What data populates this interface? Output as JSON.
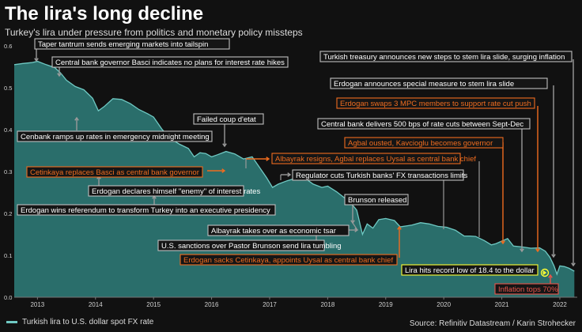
{
  "title": "The lira's long decline",
  "subtitle": "Turkey's lira under pressure from politics and monetary policy missteps",
  "legend_label": "Turkish lira to U.S. dollar spot FX rate",
  "source": "Source: Refinitiv Datastream / Karin Strohecker",
  "colors": {
    "background": "#111111",
    "series": "#6fc9c3",
    "area": "#2f7f7b",
    "gray_box": "#bfbfbf",
    "orange_box": "#ef6c1f",
    "yellow_box": "#ffff33",
    "red_box": "#e8544a"
  },
  "chart_data": {
    "type": "area",
    "ylim": [
      0,
      0.6
    ],
    "yticks": [
      0.0,
      0.1,
      0.2,
      0.3,
      0.4,
      0.5,
      0.6
    ],
    "xlim": [
      2012.6,
      2022.3
    ],
    "xticks": [
      2013,
      2014,
      2015,
      2016,
      2017,
      2018,
      2019,
      2020,
      2021,
      2022
    ],
    "grid": false,
    "series": [
      {
        "name": "Turkish lira to U.S. dollar spot FX rate",
        "points": [
          [
            2012.6,
            0.555
          ],
          [
            2012.75,
            0.558
          ],
          [
            2012.9,
            0.56
          ],
          [
            2013.0,
            0.563
          ],
          [
            2013.15,
            0.555
          ],
          [
            2013.3,
            0.548
          ],
          [
            2013.4,
            0.535
          ],
          [
            2013.5,
            0.518
          ],
          [
            2013.65,
            0.503
          ],
          [
            2013.8,
            0.495
          ],
          [
            2013.95,
            0.475
          ],
          [
            2014.05,
            0.445
          ],
          [
            2014.15,
            0.455
          ],
          [
            2014.3,
            0.474
          ],
          [
            2014.45,
            0.472
          ],
          [
            2014.6,
            0.462
          ],
          [
            2014.75,
            0.448
          ],
          [
            2014.9,
            0.438
          ],
          [
            2015.0,
            0.43
          ],
          [
            2015.15,
            0.4
          ],
          [
            2015.3,
            0.378
          ],
          [
            2015.45,
            0.365
          ],
          [
            2015.6,
            0.355
          ],
          [
            2015.7,
            0.335
          ],
          [
            2015.8,
            0.345
          ],
          [
            2015.9,
            0.343
          ],
          [
            2016.0,
            0.335
          ],
          [
            2016.1,
            0.34
          ],
          [
            2016.25,
            0.348
          ],
          [
            2016.4,
            0.342
          ],
          [
            2016.55,
            0.33
          ],
          [
            2016.7,
            0.335
          ],
          [
            2016.8,
            0.315
          ],
          [
            2016.95,
            0.285
          ],
          [
            2017.05,
            0.262
          ],
          [
            2017.15,
            0.27
          ],
          [
            2017.3,
            0.278
          ],
          [
            2017.45,
            0.284
          ],
          [
            2017.6,
            0.285
          ],
          [
            2017.75,
            0.27
          ],
          [
            2017.9,
            0.262
          ],
          [
            2018.0,
            0.265
          ],
          [
            2018.15,
            0.252
          ],
          [
            2018.3,
            0.236
          ],
          [
            2018.4,
            0.225
          ],
          [
            2018.5,
            0.208
          ],
          [
            2018.6,
            0.15
          ],
          [
            2018.68,
            0.175
          ],
          [
            2018.78,
            0.165
          ],
          [
            2018.88,
            0.185
          ],
          [
            2019.0,
            0.188
          ],
          [
            2019.15,
            0.183
          ],
          [
            2019.25,
            0.168
          ],
          [
            2019.35,
            0.17
          ],
          [
            2019.45,
            0.172
          ],
          [
            2019.6,
            0.178
          ],
          [
            2019.75,
            0.175
          ],
          [
            2019.9,
            0.169
          ],
          [
            2020.05,
            0.167
          ],
          [
            2020.2,
            0.16
          ],
          [
            2020.35,
            0.146
          ],
          [
            2020.45,
            0.146
          ],
          [
            2020.55,
            0.145
          ],
          [
            2020.7,
            0.135
          ],
          [
            2020.82,
            0.125
          ],
          [
            2020.9,
            0.128
          ],
          [
            2021.0,
            0.134
          ],
          [
            2021.1,
            0.14
          ],
          [
            2021.2,
            0.122
          ],
          [
            2021.35,
            0.12
          ],
          [
            2021.5,
            0.117
          ],
          [
            2021.65,
            0.118
          ],
          [
            2021.75,
            0.11
          ],
          [
            2021.83,
            0.095
          ],
          [
            2021.9,
            0.075
          ],
          [
            2021.95,
            0.055
          ],
          [
            2022.0,
            0.075
          ],
          [
            2022.08,
            0.073
          ],
          [
            2022.16,
            0.069
          ],
          [
            2022.25,
            0.062
          ]
        ]
      }
    ],
    "annotations": [
      {
        "text": "Taper tantrum sends emerging markets into tailspin",
        "style": "gray"
      },
      {
        "text": "Central bank governor Basci indicates no plans for interest rate hikes",
        "style": "gray"
      },
      {
        "text": "Cenbank ramps up rates in emergency midnight meeting",
        "style": "gray"
      },
      {
        "text": "Cetinkaya replaces Basci as central bank governor",
        "style": "orange"
      },
      {
        "text": "Erdogan declares himself \"enemy\" of interest rates",
        "style": "gray"
      },
      {
        "text": "Erdogan wins referendum to transform Turkey into an executive presidency",
        "style": "gray"
      },
      {
        "text": "Failed coup d'etat",
        "style": "gray"
      },
      {
        "text": "Albayrak resigns, Agbal replaces Uysal as central bank chief",
        "style": "orange"
      },
      {
        "text": "Regulator cuts Turkish banks' FX transactions limits",
        "style": "gray"
      },
      {
        "text": "Brunson released",
        "style": "gray"
      },
      {
        "text": "Albayrak takes over as economic tsar",
        "style": "gray"
      },
      {
        "text": "U.S. sanctions over Pastor Brunson send lira tumbling",
        "style": "gray"
      },
      {
        "text": "Erdogan sacks Cetinkaya, appoints Uysal as central bank chief",
        "style": "orange"
      },
      {
        "text": "Lira hits record low of 18.4 to the dollar",
        "style": "yellow"
      },
      {
        "text": "Inflation tops 70%",
        "style": "red"
      },
      {
        "text": "Turkish treasury announces new steps to stem lira slide, surging inflation",
        "style": "gray"
      },
      {
        "text": "Erdogan announces special measure to stem lira slide",
        "style": "gray"
      },
      {
        "text": "Erdogan swaps 3 MPC members to support rate cut push",
        "style": "orange"
      },
      {
        "text": "Central bank delivers 500 bps of rate cuts between Sept-Dec",
        "style": "gray"
      },
      {
        "text": "Agbal ousted, Kavcioglu becomes governor",
        "style": "orange"
      }
    ]
  }
}
